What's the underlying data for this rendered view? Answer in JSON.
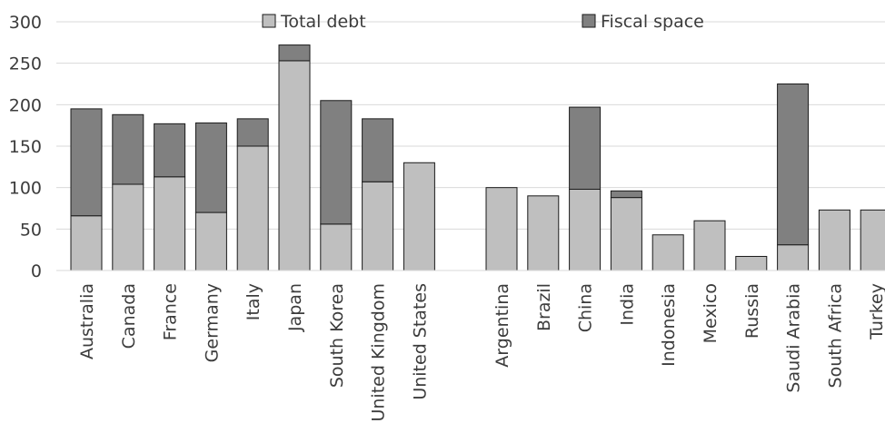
{
  "chart_data": {
    "type": "bar",
    "stacked": true,
    "title": "",
    "xlabel": "",
    "ylabel": "",
    "ylim": [
      0,
      300
    ],
    "yticks": [
      0,
      50,
      100,
      150,
      200,
      250,
      300
    ],
    "grid": true,
    "legend_position": "top",
    "categories": [
      "Australia",
      "Canada",
      "France",
      "Germany",
      "Italy",
      "Japan",
      "South Korea",
      "United Kingdom",
      "United States",
      "Argentina",
      "Brazil",
      "China",
      "India",
      "Indonesia",
      "Mexico",
      "Russia",
      "Saudi Arabia",
      "South Africa",
      "Turkey"
    ],
    "series": [
      {
        "name": "Total debt",
        "color": "#bfbfbf",
        "values": [
          66,
          104,
          113,
          70,
          150,
          253,
          56,
          107,
          130,
          100,
          90,
          98,
          88,
          43,
          60,
          17,
          31,
          73,
          73
        ]
      },
      {
        "name": "Fiscal space",
        "color": "#808080",
        "values": [
          129,
          84,
          64,
          108,
          33,
          19,
          149,
          76,
          0,
          0,
          0,
          99,
          8,
          0,
          0,
          0,
          194,
          0,
          0
        ]
      }
    ]
  }
}
